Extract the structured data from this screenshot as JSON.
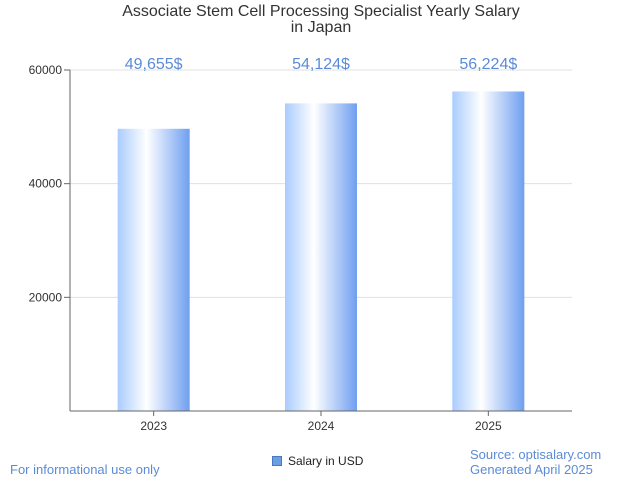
{
  "chart_data": {
    "type": "bar",
    "title": "Associate Stem Cell Processing Specialist Yearly Salary",
    "subtitle": "in Japan",
    "categories": [
      "2023",
      "2024",
      "2025"
    ],
    "series": [
      {
        "name": "Salary in USD",
        "values": [
          49655,
          54124,
          56224
        ]
      }
    ],
    "data_labels": [
      "49,655$",
      "54,124$",
      "56,224$"
    ],
    "y_ticks": [
      "20000",
      "40000",
      "60000"
    ],
    "y_tick_values": [
      20000,
      40000,
      60000
    ],
    "ylim": [
      0,
      60000
    ],
    "grid": true,
    "legend_position": "bottom-center",
    "colors": {
      "bar_light": "#ffffff",
      "bar_mid": "#cfe3ff",
      "bar_dark": "#6f9ff0",
      "label": "#5b8bd6",
      "grid": "#e0e0e0",
      "axis": "#666666"
    }
  },
  "footer": {
    "left": "For informational use only",
    "source": "Source: optisalary.com",
    "generated": "Generated April 2025"
  }
}
